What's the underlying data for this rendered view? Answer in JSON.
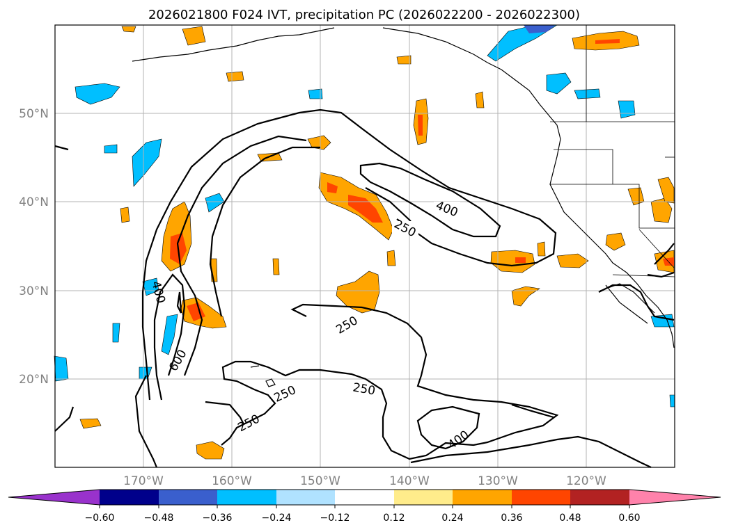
{
  "figure": {
    "title": "2026021800 F024 IVT, precipitation PC (2026022200 - 2026022300)"
  },
  "map": {
    "lat_labels": [
      "50°N",
      "40°N",
      "30°N",
      "20°N"
    ],
    "lon_labels": [
      "170°W",
      "160°W",
      "150°W",
      "140°W",
      "130°W",
      "120°W"
    ],
    "lon_range_deg": [
      -180,
      -110
    ],
    "lat_range_deg": [
      10,
      60
    ],
    "contour_labels": [
      "400",
      "250",
      "400",
      "600",
      "250",
      "250",
      "250",
      "250",
      "400"
    ],
    "ivt_contour_levels": [
      250,
      400,
      600
    ]
  },
  "colorbar": {
    "tick_labels": [
      "−0.60",
      "−0.48",
      "−0.36",
      "−0.24",
      "−0.12",
      "0.12",
      "0.24",
      "0.36",
      "0.48",
      "0.60"
    ],
    "colors": [
      "#9932cc",
      "#00008b",
      "#3a5fcd",
      "#00bfff",
      "#b0e2ff",
      "#ffffff",
      "#ffec8b",
      "#ffa500",
      "#ff4500",
      "#b22222",
      "#ff82ab"
    ]
  },
  "colors": {
    "grid": "#b3b3b3",
    "contour": "#000000",
    "coast": "#000000"
  }
}
